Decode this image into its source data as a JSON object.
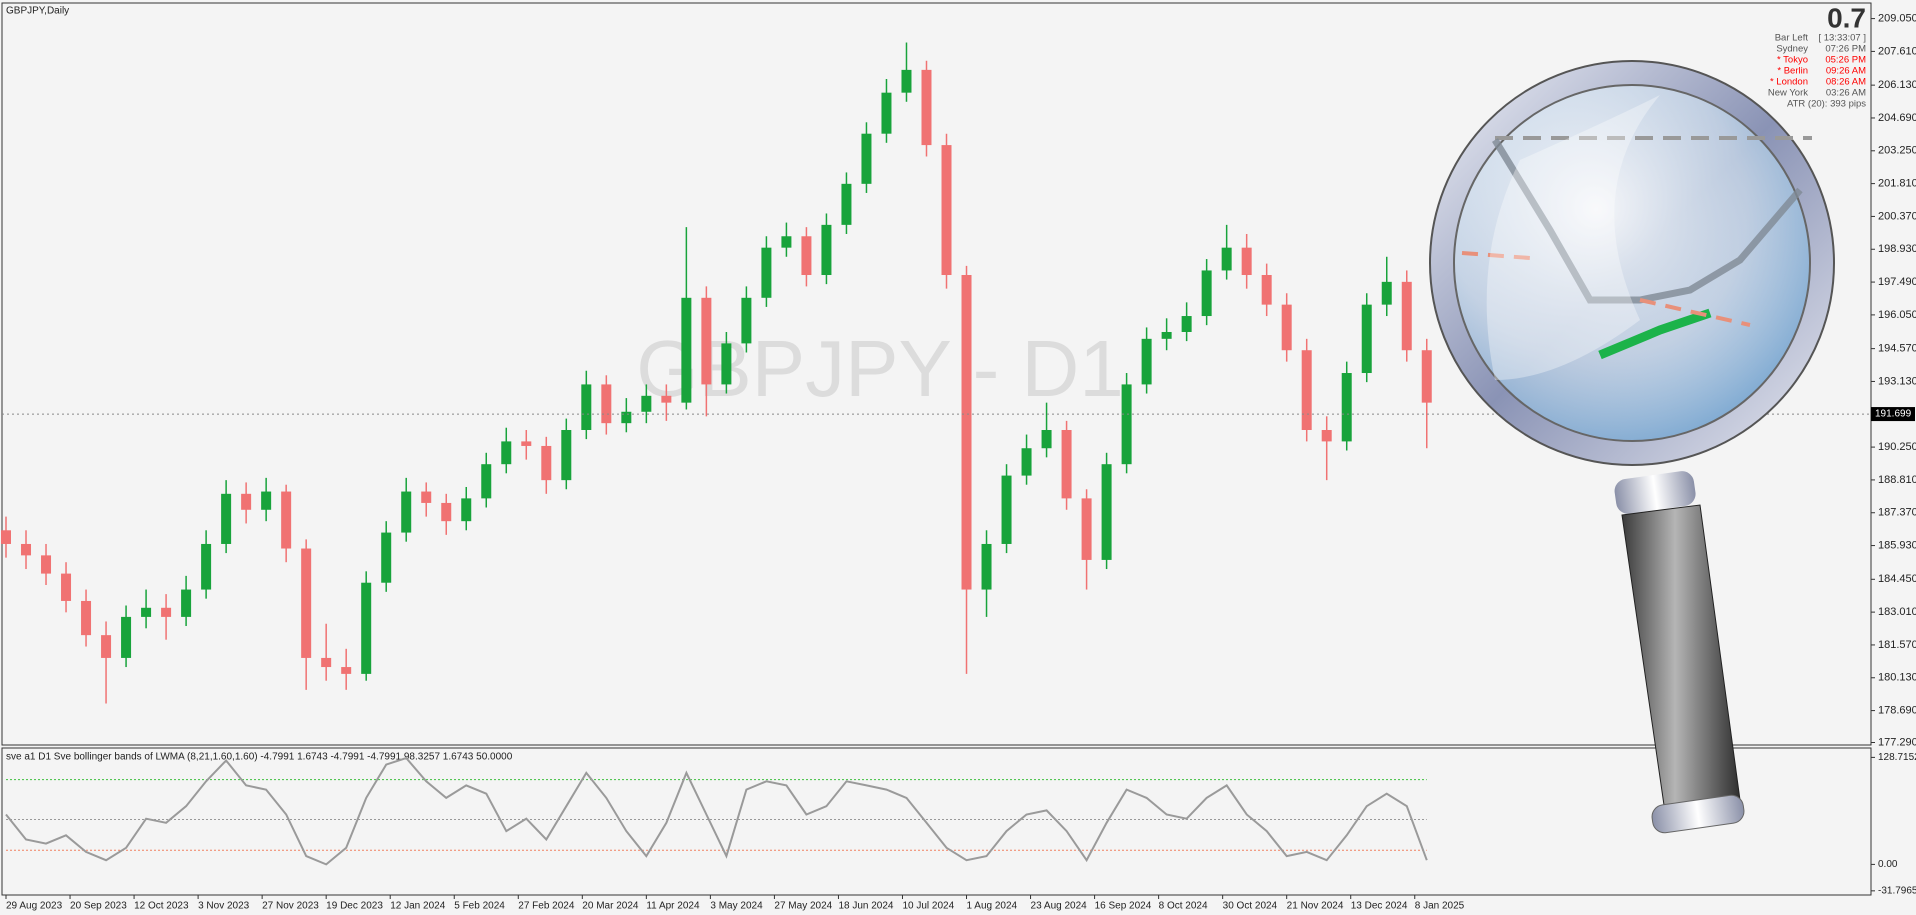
{
  "chart_data": [
    {
      "type": "candlestick",
      "title": "GBPJPY,Daily",
      "watermark": "GBPJPY - D1",
      "up_color": "#18a33b",
      "down_color": "#f07272",
      "x": [
        0,
        5,
        10,
        15,
        20,
        25,
        30,
        35,
        40,
        45,
        50,
        55,
        60,
        65,
        70,
        75,
        80,
        85,
        90,
        95,
        100,
        105,
        110,
        115,
        120,
        125,
        130,
        135,
        140,
        145,
        150,
        155,
        160,
        165,
        170,
        175,
        180,
        185,
        190,
        195,
        200,
        205,
        210,
        215,
        220,
        225,
        230,
        235,
        240,
        245,
        250,
        255,
        260,
        265,
        270,
        275,
        280,
        285,
        290,
        295,
        300,
        305,
        310,
        315,
        320,
        325,
        330,
        335,
        340,
        345,
        350,
        355
      ],
      "ohlc": [
        [
          186.6,
          187.2,
          185.4,
          186.0
        ],
        [
          186.0,
          186.6,
          184.9,
          185.5
        ],
        [
          185.5,
          186.0,
          184.2,
          184.7
        ],
        [
          184.7,
          185.2,
          183.0,
          183.5
        ],
        [
          183.5,
          184.0,
          181.5,
          182.0
        ],
        [
          182.0,
          182.6,
          179.0,
          181.0
        ],
        [
          181.0,
          183.3,
          180.6,
          182.8
        ],
        [
          182.8,
          184.0,
          182.3,
          183.2
        ],
        [
          183.2,
          183.8,
          181.8,
          182.8
        ],
        [
          182.8,
          184.6,
          182.4,
          184.0
        ],
        [
          184.0,
          186.6,
          183.6,
          186.0
        ],
        [
          186.0,
          188.8,
          185.6,
          188.2
        ],
        [
          188.2,
          188.7,
          186.9,
          187.5
        ],
        [
          187.5,
          188.9,
          187.0,
          188.3
        ],
        [
          188.3,
          188.6,
          185.2,
          185.8
        ],
        [
          185.8,
          186.2,
          179.6,
          181.0
        ],
        [
          181.0,
          182.5,
          180.0,
          180.6
        ],
        [
          180.6,
          181.4,
          179.6,
          180.3
        ],
        [
          180.3,
          184.8,
          180.0,
          184.3
        ],
        [
          184.3,
          187.0,
          183.9,
          186.5
        ],
        [
          186.5,
          188.9,
          186.1,
          188.3
        ],
        [
          188.3,
          188.7,
          187.2,
          187.8
        ],
        [
          187.8,
          188.2,
          186.4,
          187.0
        ],
        [
          187.0,
          188.5,
          186.6,
          188.0
        ],
        [
          188.0,
          190.0,
          187.6,
          189.5
        ],
        [
          189.5,
          191.1,
          189.1,
          190.5
        ],
        [
          190.5,
          191.0,
          189.7,
          190.3
        ],
        [
          190.3,
          190.7,
          188.2,
          188.8
        ],
        [
          188.8,
          191.5,
          188.4,
          191.0
        ],
        [
          191.0,
          193.6,
          190.6,
          193.0
        ],
        [
          193.0,
          193.4,
          190.8,
          191.3
        ],
        [
          191.3,
          192.4,
          190.9,
          191.8
        ],
        [
          191.8,
          193.0,
          191.3,
          192.5
        ],
        [
          192.5,
          193.0,
          191.4,
          192.2
        ],
        [
          192.2,
          199.9,
          191.9,
          196.8
        ],
        [
          196.8,
          197.3,
          191.6,
          193.0
        ],
        [
          193.0,
          195.3,
          192.6,
          194.8
        ],
        [
          194.8,
          197.3,
          194.4,
          196.8
        ],
        [
          196.8,
          199.5,
          196.4,
          199.0
        ],
        [
          199.0,
          200.1,
          198.6,
          199.5
        ],
        [
          199.5,
          199.9,
          197.3,
          197.8
        ],
        [
          197.8,
          200.5,
          197.4,
          200.0
        ],
        [
          200.0,
          202.3,
          199.6,
          201.8
        ],
        [
          201.8,
          204.5,
          201.4,
          204.0
        ],
        [
          204.0,
          206.4,
          203.6,
          205.8
        ],
        [
          205.8,
          208.0,
          205.4,
          206.8
        ],
        [
          206.8,
          207.2,
          203.0,
          203.5
        ],
        [
          203.5,
          204.0,
          197.2,
          197.8
        ],
        [
          197.8,
          198.2,
          180.3,
          184.0
        ],
        [
          184.0,
          186.6,
          182.8,
          186.0
        ],
        [
          186.0,
          189.5,
          185.6,
          189.0
        ],
        [
          189.0,
          190.8,
          188.6,
          190.2
        ],
        [
          190.2,
          192.2,
          189.8,
          191.0
        ],
        [
          191.0,
          191.4,
          187.5,
          188.0
        ],
        [
          188.0,
          188.4,
          184.0,
          185.3
        ],
        [
          185.3,
          190.0,
          184.9,
          189.5
        ],
        [
          189.5,
          193.5,
          189.1,
          193.0
        ],
        [
          193.0,
          195.5,
          192.6,
          195.0
        ],
        [
          195.0,
          195.9,
          194.5,
          195.3
        ],
        [
          195.3,
          196.6,
          194.9,
          196.0
        ],
        [
          196.0,
          198.5,
          195.6,
          198.0
        ],
        [
          198.0,
          200.0,
          197.6,
          199.0
        ],
        [
          199.0,
          199.6,
          197.2,
          197.8
        ],
        [
          197.8,
          198.3,
          196.0,
          196.5
        ],
        [
          196.5,
          197.0,
          194.0,
          194.5
        ],
        [
          194.5,
          195.0,
          190.5,
          191.0
        ],
        [
          191.0,
          191.6,
          188.8,
          190.5
        ],
        [
          190.5,
          194.0,
          190.1,
          193.5
        ],
        [
          193.5,
          197.0,
          193.1,
          196.5
        ],
        [
          196.5,
          198.6,
          196.0,
          197.5
        ],
        [
          197.5,
          198.0,
          194.0,
          194.5
        ],
        [
          194.5,
          195.0,
          190.2,
          192.2
        ]
      ],
      "last_price": 191.699,
      "xlim": [
        -1,
        466
      ],
      "xticks": [
        {
          "value": 0,
          "label": "29 Aug 2023"
        },
        {
          "value": 16,
          "label": "20 Sep 2023"
        },
        {
          "value": 32,
          "label": "12 Oct 2023"
        },
        {
          "value": 48,
          "label": "3 Nov 2023"
        },
        {
          "value": 64,
          "label": "27 Nov 2023"
        },
        {
          "value": 80,
          "label": "19 Dec 2023"
        },
        {
          "value": 96,
          "label": "12 Jan 2024"
        },
        {
          "value": 112,
          "label": "5 Feb 2024"
        },
        {
          "value": 128,
          "label": "27 Feb 2024"
        },
        {
          "value": 144,
          "label": "20 Mar 2024"
        },
        {
          "value": 160,
          "label": "11 Apr 2024"
        },
        {
          "value": 176,
          "label": "3 May 2024"
        },
        {
          "value": 192,
          "label": "27 May 2024"
        },
        {
          "value": 208,
          "label": "18 Jun 2024"
        },
        {
          "value": 224,
          "label": "10 Jul 2024"
        },
        {
          "value": 240,
          "label": "1 Aug 2024"
        },
        {
          "value": 256,
          "label": "23 Aug 2024"
        },
        {
          "value": 272,
          "label": "16 Sep 2024"
        },
        {
          "value": 288,
          "label": "8 Oct 2024"
        },
        {
          "value": 304,
          "label": "30 Oct 2024"
        },
        {
          "value": 320,
          "label": "21 Nov 2024"
        },
        {
          "value": 336,
          "label": "13 Dec 2024"
        },
        {
          "value": 352,
          "label": "8 Jan 2025"
        }
      ],
      "ylim": [
        177.18,
        209.69
      ],
      "yticks": [
        {
          "value": 209.05,
          "label": "209.050"
        },
        {
          "value": 207.61,
          "label": "207.610"
        },
        {
          "value": 206.13,
          "label": "206.130"
        },
        {
          "value": 204.69,
          "label": "204.690"
        },
        {
          "value": 203.25,
          "label": "203.250"
        },
        {
          "value": 201.81,
          "label": "201.810"
        },
        {
          "value": 200.37,
          "label": "200.370"
        },
        {
          "value": 198.93,
          "label": "198.930"
        },
        {
          "value": 197.49,
          "label": "197.490"
        },
        {
          "value": 196.05,
          "label": "196.050"
        },
        {
          "value": 194.57,
          "label": "194.570"
        },
        {
          "value": 193.13,
          "label": "193.130"
        },
        {
          "value": 190.25,
          "label": "190.250"
        },
        {
          "value": 188.81,
          "label": "188.810"
        },
        {
          "value": 187.37,
          "label": "187.370"
        },
        {
          "value": 185.93,
          "label": "185.930"
        },
        {
          "value": 184.45,
          "label": "184.450"
        },
        {
          "value": 183.01,
          "label": "183.010"
        },
        {
          "value": 181.57,
          "label": "181.570"
        },
        {
          "value": 180.13,
          "label": "180.130"
        },
        {
          "value": 178.69,
          "label": "178.690"
        },
        {
          "value": 177.29,
          "label": "177.290"
        }
      ]
    },
    {
      "type": "line",
      "title": "sve a1 D1 Sve bollinger bands of LWMA (8,21,1.60,1.60) -4.7991 1.6743 -4.7991 -4.7991 98.3257 1.6743 50.0000",
      "color": "#9a9a9a",
      "x": [
        0,
        5,
        10,
        15,
        20,
        25,
        30,
        35,
        40,
        45,
        50,
        55,
        60,
        65,
        70,
        75,
        80,
        85,
        90,
        95,
        100,
        105,
        110,
        115,
        120,
        125,
        130,
        135,
        140,
        145,
        150,
        155,
        160,
        165,
        170,
        175,
        180,
        185,
        190,
        195,
        200,
        205,
        210,
        215,
        220,
        225,
        230,
        235,
        240,
        245,
        250,
        255,
        260,
        265,
        270,
        275,
        280,
        285,
        290,
        295,
        300,
        305,
        310,
        315,
        320,
        325,
        330,
        335,
        340,
        345,
        350,
        355
      ],
      "values": [
        60,
        30,
        25,
        35,
        15,
        5,
        20,
        55,
        50,
        70,
        100,
        125,
        95,
        90,
        60,
        10,
        0,
        20,
        80,
        120,
        128,
        100,
        80,
        95,
        85,
        40,
        55,
        30,
        70,
        110,
        80,
        40,
        10,
        50,
        110,
        60,
        10,
        90,
        100,
        95,
        60,
        70,
        100,
        95,
        90,
        80,
        50,
        20,
        5,
        10,
        40,
        60,
        65,
        40,
        5,
        50,
        90,
        80,
        60,
        55,
        80,
        95,
        60,
        40,
        10,
        15,
        5,
        35,
        70,
        85,
        70,
        5
      ],
      "levels": [
        102,
        54,
        17
      ],
      "level_colors": [
        "#3cc03c",
        "#999999",
        "#f08060"
      ],
      "ylim": [
        -35.6,
        138.8
      ],
      "yticks": [
        128.7152,
        {
          "value": 0,
          "label": "0.00"
        },
        -31.7965
      ]
    }
  ],
  "info_panel": {
    "spread": "0.7",
    "rows": [
      {
        "label": "Bar Left",
        "value": "[ 13:33:07 ]",
        "color": "#555555"
      },
      {
        "label": "Sydney",
        "value": "07:26 PM",
        "color": "#555555"
      },
      {
        "label": "* Tokyo",
        "value": "05:26 PM",
        "color": "#ff0000"
      },
      {
        "label": "* Berlin",
        "value": "09:26 AM",
        "color": "#ff0000"
      },
      {
        "label": "* London",
        "value": "08:26 AM",
        "color": "#ff0000"
      },
      {
        "label": "New York",
        "value": "03:26 AM",
        "color": "#555555"
      },
      {
        "label": "ATR (20): 393 pips",
        "value": null,
        "color": "#555555"
      }
    ]
  }
}
